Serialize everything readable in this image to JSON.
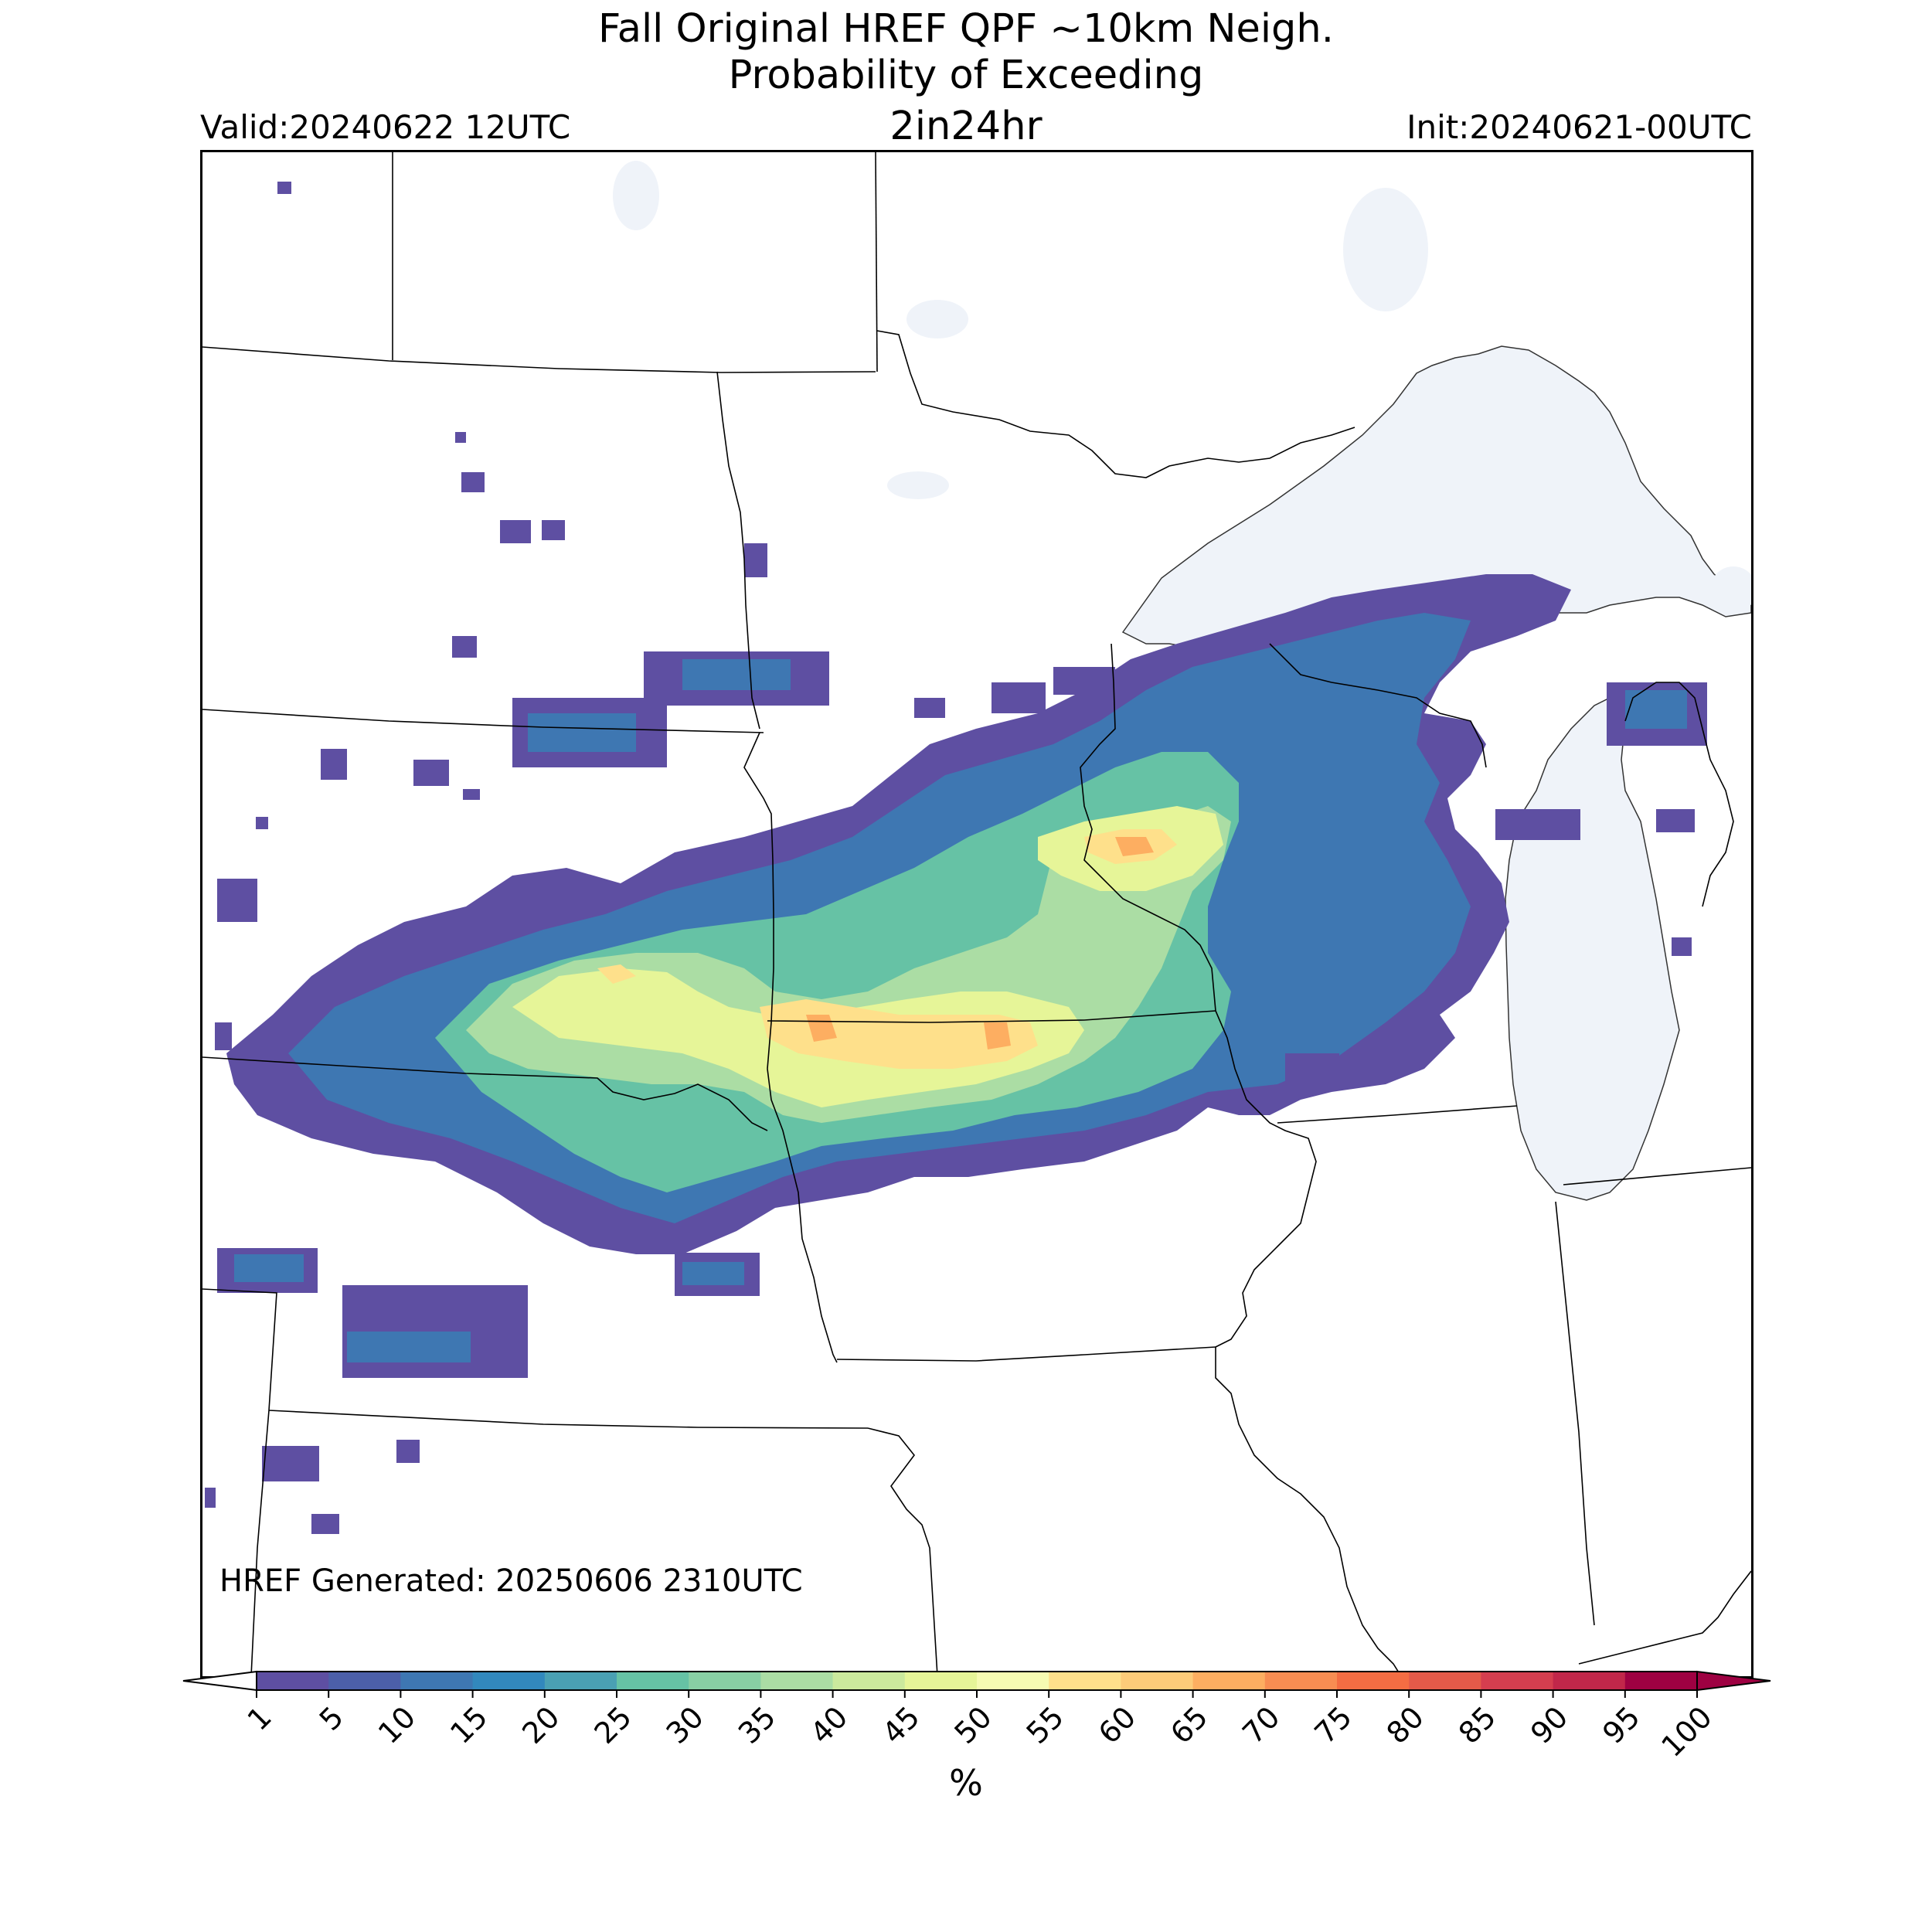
{
  "title": {
    "line1": "Fall Original HREF QPF ~10km Neigh.",
    "line2": "Probability of Exceeding",
    "line3": "2in24hr"
  },
  "valid_label": "Valid:20240622 12UTC",
  "init_label": "Init:20240621-00UTC",
  "generated_label": "HREF Generated: 20250606 2310UTC",
  "colorbar": {
    "unit": "%",
    "ticks": [
      "1",
      "5",
      "10",
      "15",
      "20",
      "25",
      "30",
      "35",
      "40",
      "45",
      "50",
      "55",
      "60",
      "65",
      "70",
      "75",
      "80",
      "85",
      "90",
      "95",
      "100"
    ],
    "colors": [
      "#5e4fa2",
      "#4c5fa9",
      "#3e77b2",
      "#3288bd",
      "#4aa0b3",
      "#66c2a5",
      "#88cfa4",
      "#abdda4",
      "#cbe99d",
      "#e6f598",
      "#f6fbb2",
      "#fee08b",
      "#fdcb79",
      "#fdae61",
      "#f88d52",
      "#f46d43",
      "#e45a49",
      "#d53e4f",
      "#c1274a",
      "#9e0142"
    ],
    "extend": "both"
  },
  "map": {
    "projection": "Lambert conformal",
    "region": "Upper Midwest / Northern Plains",
    "water_color": "#eff3f9",
    "border_color": "#000000",
    "field": "probability of exceeding 2 in / 24 hr (%)",
    "max_probability_band": "65-70"
  }
}
